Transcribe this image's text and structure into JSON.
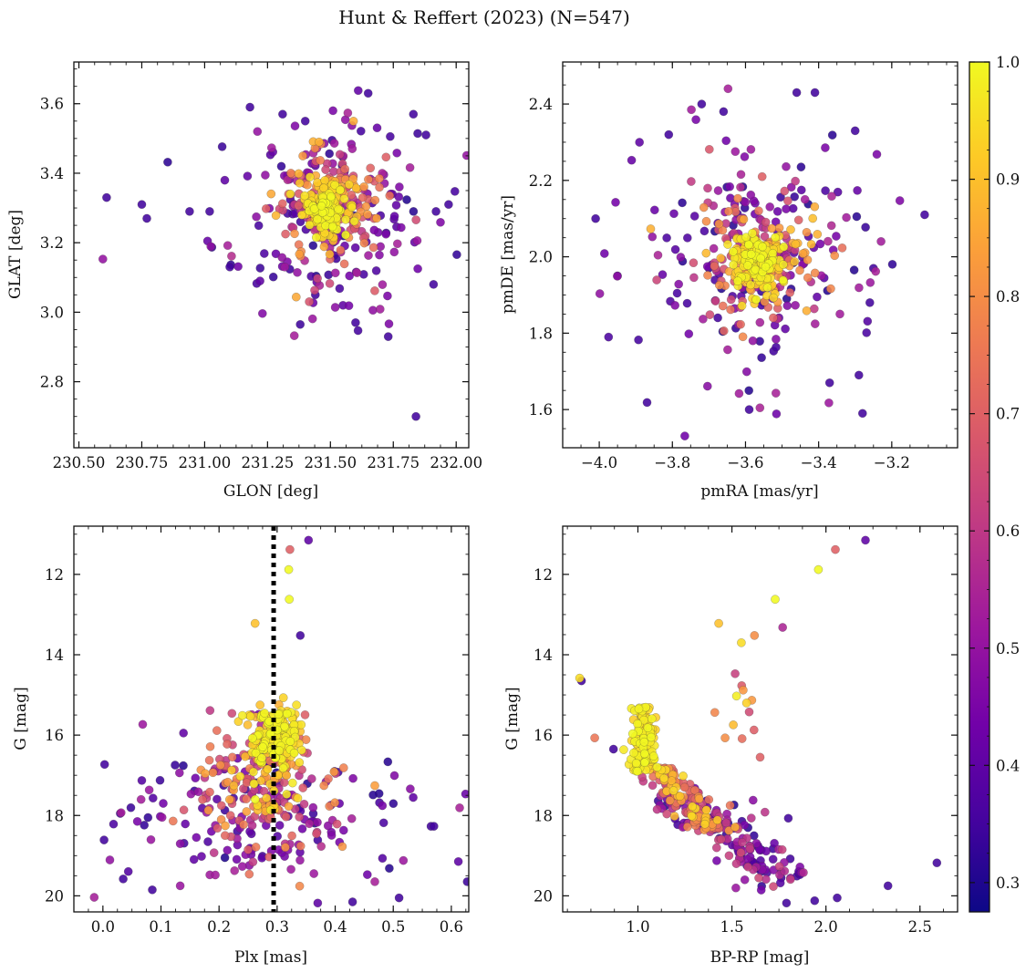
{
  "figure": {
    "title": "Hunt & Reffert (2023) (N=547)"
  },
  "colorbar": {
    "colormap": "plasma",
    "range": [
      0.275,
      1.0
    ],
    "ticks": [
      0.3,
      0.4,
      0.5,
      0.6,
      0.7,
      0.8,
      0.9,
      1.0
    ],
    "tick_labels": [
      "0.3",
      "0.4",
      "0.5",
      "0.6",
      "0.7",
      "0.8",
      "0.9",
      "1.0"
    ],
    "stops": [
      "#0d0887",
      "#46039f",
      "#7201a8",
      "#9c179e",
      "#bd3786",
      "#d8576b",
      "#ed7953",
      "#fb9f3a",
      "#fdca26",
      "#f0f921"
    ]
  },
  "chart_data": [
    {
      "id": "glon-glat",
      "type": "scatter",
      "xlabel": "GLON [deg]",
      "ylabel": "GLAT [deg]",
      "xlim": [
        230.48,
        232.05
      ],
      "ylim": [
        2.61,
        3.72
      ],
      "yinvert": false,
      "xticks": [
        230.5,
        230.75,
        231.0,
        231.25,
        231.5,
        231.75,
        232.0
      ],
      "xtick_labels": [
        "230.50",
        "230.75",
        "231.00",
        "231.25",
        "231.50",
        "231.75",
        "232.00"
      ],
      "yticks": [
        2.8,
        3.0,
        3.2,
        3.4,
        3.6
      ],
      "ytick_labels": [
        "2.8",
        "3.0",
        "3.2",
        "3.4",
        "3.6"
      ],
      "n_points": 547,
      "sample_points": [
        [
          230.61,
          3.33,
          0.35
        ],
        [
          230.75,
          3.31,
          0.35
        ],
        [
          230.77,
          3.27,
          0.35
        ],
        [
          230.94,
          3.29,
          0.35
        ],
        [
          231.02,
          3.29,
          0.35
        ],
        [
          231.08,
          3.38,
          0.4
        ],
        [
          231.1,
          3.13,
          0.35
        ],
        [
          231.18,
          3.59,
          0.35
        ],
        [
          231.21,
          3.52,
          0.5
        ],
        [
          231.31,
          3.57,
          0.35
        ],
        [
          231.4,
          3.55,
          0.35
        ],
        [
          231.51,
          3.58,
          0.45
        ],
        [
          231.65,
          3.63,
          0.35
        ],
        [
          231.88,
          3.51,
          0.35
        ],
        [
          231.83,
          3.57,
          0.35
        ],
        [
          231.73,
          2.93,
          0.35
        ],
        [
          231.6,
          2.97,
          0.35
        ],
        [
          231.84,
          2.7,
          0.35
        ],
        [
          231.91,
          3.08,
          0.35
        ],
        [
          231.97,
          3.31,
          0.35
        ],
        [
          231.92,
          3.29,
          0.35
        ],
        [
          231.22,
          3.09,
          0.4
        ],
        [
          231.55,
          3.02,
          0.4
        ],
        [
          231.44,
          3.05,
          0.35
        ]
      ],
      "core": {
        "x": 231.48,
        "y": 3.3,
        "sx": 0.04,
        "sy": 0.035
      },
      "halo": {
        "x": 231.48,
        "y": 3.3,
        "sx": 0.11,
        "sy": 0.09
      },
      "field": {
        "x": 231.48,
        "y": 3.28,
        "sx": 0.22,
        "sy": 0.15
      }
    },
    {
      "id": "pmra-pmde",
      "type": "scatter",
      "xlabel": "pmRA [mas/yr]",
      "ylabel": "pmDE [mas/yr]",
      "xlim": [
        -4.1,
        -3.02
      ],
      "ylim": [
        1.5,
        2.51
      ],
      "yinvert": false,
      "xticks": [
        -4.0,
        -3.8,
        -3.6,
        -3.4,
        -3.2
      ],
      "xtick_labels": [
        "−4.0",
        "−3.8",
        "−3.6",
        "−3.4",
        "−3.2"
      ],
      "yticks": [
        1.6,
        1.8,
        2.0,
        2.2,
        2.4
      ],
      "ytick_labels": [
        "1.6",
        "1.8",
        "2.0",
        "2.2",
        "2.4"
      ],
      "n_points": 547,
      "sample_points": [
        [
          -4.01,
          2.1,
          0.35
        ],
        [
          -3.95,
          1.95,
          0.35
        ],
        [
          -3.72,
          2.4,
          0.35
        ],
        [
          -3.46,
          2.43,
          0.35
        ],
        [
          -3.41,
          2.43,
          0.35
        ],
        [
          -3.11,
          2.11,
          0.35
        ],
        [
          -3.28,
          1.59,
          0.35
        ],
        [
          -3.59,
          1.6,
          0.35
        ],
        [
          -3.29,
          1.69,
          0.35
        ],
        [
          -3.37,
          1.67,
          0.35
        ],
        [
          -3.89,
          2.3,
          0.4
        ],
        [
          -3.81,
          2.32,
          0.35
        ],
        [
          -3.66,
          2.38,
          0.35
        ],
        [
          -3.3,
          2.33,
          0.35
        ],
        [
          -3.26,
          1.88,
          0.35
        ],
        [
          -3.25,
          1.97,
          0.35
        ]
      ],
      "core": {
        "x": -3.57,
        "y": 1.99,
        "sx": 0.035,
        "sy": 0.035
      },
      "halo": {
        "x": -3.56,
        "y": 2.0,
        "sx": 0.09,
        "sy": 0.08
      },
      "field": {
        "x": -3.55,
        "y": 2.0,
        "sx": 0.17,
        "sy": 0.16
      }
    },
    {
      "id": "plx-g",
      "type": "scatter",
      "xlabel": "Plx [mas]",
      "ylabel": "G [mag]",
      "xlim": [
        -0.05,
        0.63
      ],
      "ylim": [
        10.8,
        20.4
      ],
      "yinvert": true,
      "vline": {
        "x": 0.294,
        "style": "dotted",
        "color": "#000000"
      },
      "xticks": [
        0.0,
        0.1,
        0.2,
        0.3,
        0.4,
        0.5,
        0.6
      ],
      "xtick_labels": [
        "0.0",
        "0.1",
        "0.2",
        "0.3",
        "0.4",
        "0.5",
        "0.6"
      ],
      "yticks": [
        12,
        14,
        16,
        18,
        20
      ],
      "ytick_labels": [
        "12",
        "14",
        "16",
        "18",
        "20"
      ],
      "n_points": 547,
      "sample_points": [
        [
          0.354,
          11.15,
          0.4
        ],
        [
          0.322,
          11.38,
          0.7
        ],
        [
          0.32,
          11.88,
          1.0
        ],
        [
          0.321,
          12.62,
          1.0
        ],
        [
          0.34,
          13.52,
          0.35
        ],
        [
          0.262,
          13.22,
          0.9
        ],
        [
          0.003,
          16.73,
          0.35
        ],
        [
          0.002,
          18.61,
          0.35
        ],
        [
          0.03,
          17.95,
          0.35
        ],
        [
          0.035,
          19.58,
          0.35
        ],
        [
          0.085,
          19.85,
          0.35
        ],
        [
          0.37,
          20.18,
          0.4
        ],
        [
          0.43,
          20.15,
          0.35
        ],
        [
          0.51,
          20.05,
          0.35
        ],
        [
          0.565,
          18.27,
          0.35
        ],
        [
          0.57,
          18.27,
          0.35
        ]
      ]
    },
    {
      "id": "bprp-g",
      "type": "scatter",
      "xlabel": "BP-RP [mag]",
      "ylabel": "G [mag]",
      "xlim": [
        0.6,
        2.7
      ],
      "ylim": [
        10.8,
        20.4
      ],
      "yinvert": true,
      "xticks": [
        1.0,
        1.5,
        2.0,
        2.5
      ],
      "xtick_labels": [
        "1.0",
        "1.5",
        "2.0",
        "2.5"
      ],
      "yticks": [
        12,
        14,
        16,
        18,
        20
      ],
      "ytick_labels": [
        "12",
        "14",
        "16",
        "18",
        "20"
      ],
      "n_points": 547,
      "sample_points": [
        [
          2.21,
          11.15,
          0.4
        ],
        [
          2.05,
          11.38,
          0.7
        ],
        [
          1.96,
          11.88,
          1.0
        ],
        [
          1.73,
          12.62,
          1.0
        ],
        [
          1.77,
          13.32,
          0.55
        ],
        [
          1.62,
          13.52,
          0.8
        ],
        [
          1.55,
          13.7,
          0.95
        ],
        [
          1.43,
          13.22,
          0.9
        ],
        [
          0.69,
          14.58,
          0.95
        ],
        [
          0.7,
          14.65,
          0.35
        ],
        [
          0.77,
          16.07,
          0.75
        ],
        [
          0.87,
          16.35,
          0.35
        ],
        [
          2.59,
          19.18,
          0.35
        ],
        [
          2.33,
          19.75,
          0.35
        ],
        [
          2.06,
          20.05,
          0.35
        ],
        [
          1.94,
          20.12,
          0.35
        ],
        [
          1.79,
          20.18,
          0.35
        ],
        [
          1.81,
          19.08,
          0.35
        ],
        [
          1.8,
          18.07,
          0.35
        ],
        [
          1.65,
          16.55,
          0.7
        ]
      ]
    }
  ]
}
